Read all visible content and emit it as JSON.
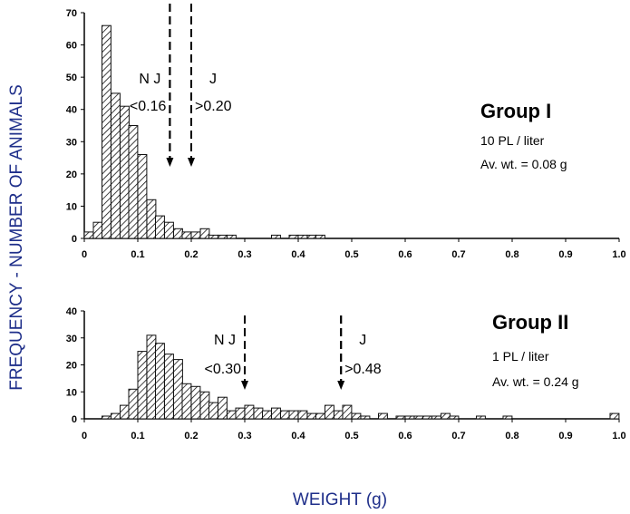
{
  "figure": {
    "ylabel": "FREQUENCY - NUMBER OF ANIMALS",
    "xlabel": "WEIGHT (g)"
  },
  "chart_data": [
    {
      "type": "bar",
      "panel": "top",
      "title": "Group I",
      "subtitle_1": "10 PL / liter",
      "subtitle_2": "Av. wt. = 0.08 g",
      "xlim": [
        0,
        1.0
      ],
      "ylim": [
        0,
        70
      ],
      "bin_width": 0.0167,
      "x_ticks": [
        "0",
        "0.1",
        "0.2",
        "0.3",
        "0.4",
        "0.5",
        "0.6",
        "0.7",
        "0.8",
        "0.9",
        "1.0"
      ],
      "y_ticks": [
        "0",
        "10",
        "20",
        "30",
        "40",
        "50",
        "60",
        "70"
      ],
      "x": [
        0.0,
        0.017,
        0.033,
        0.05,
        0.067,
        0.083,
        0.1,
        0.117,
        0.133,
        0.15,
        0.167,
        0.183,
        0.2,
        0.217,
        0.233,
        0.25,
        0.267,
        0.35,
        0.383,
        0.4,
        0.417,
        0.433
      ],
      "values": [
        2,
        5,
        66,
        45,
        41,
        35,
        26,
        12,
        7,
        5,
        3,
        2,
        2,
        3,
        1,
        1,
        1,
        1,
        1,
        1,
        1,
        1
      ],
      "annotations": [
        {
          "x": 0.16,
          "line1": "N J",
          "line2": "<0.16"
        },
        {
          "x": 0.2,
          "line1": "J",
          "line2": ">0.20"
        }
      ]
    },
    {
      "type": "bar",
      "panel": "bottom",
      "title": "Group II",
      "subtitle_1": "1 PL / liter",
      "subtitle_2": "Av. wt. = 0.24 g",
      "xlim": [
        0,
        1.0
      ],
      "ylim": [
        0,
        40
      ],
      "bin_width": 0.0167,
      "x_ticks": [
        "0",
        "0.1",
        "0.2",
        "0.3",
        "0.4",
        "0.5",
        "0.6",
        "0.7",
        "0.8",
        "0.9",
        "1.0"
      ],
      "y_ticks": [
        "0",
        "10",
        "20",
        "30",
        "40"
      ],
      "x": [
        0.033,
        0.05,
        0.067,
        0.083,
        0.1,
        0.117,
        0.133,
        0.15,
        0.167,
        0.183,
        0.2,
        0.217,
        0.233,
        0.25,
        0.267,
        0.283,
        0.3,
        0.317,
        0.333,
        0.35,
        0.367,
        0.383,
        0.4,
        0.417,
        0.433,
        0.45,
        0.467,
        0.483,
        0.5,
        0.517,
        0.55,
        0.583,
        0.6,
        0.617,
        0.633,
        0.65,
        0.667,
        0.683,
        0.733,
        0.783,
        0.983
      ],
      "values": [
        1,
        2,
        5,
        11,
        25,
        31,
        28,
        24,
        22,
        13,
        12,
        10,
        6,
        8,
        3,
        4,
        5,
        4,
        3,
        4,
        3,
        3,
        3,
        2,
        2,
        5,
        3,
        5,
        2,
        1,
        2,
        1,
        1,
        1,
        1,
        1,
        2,
        1,
        1,
        1,
        2
      ],
      "annotations": [
        {
          "x": 0.3,
          "line1": "N J",
          "line2": "<0.30"
        },
        {
          "x": 0.48,
          "line1": "J",
          "line2": ">0.48"
        }
      ]
    }
  ]
}
